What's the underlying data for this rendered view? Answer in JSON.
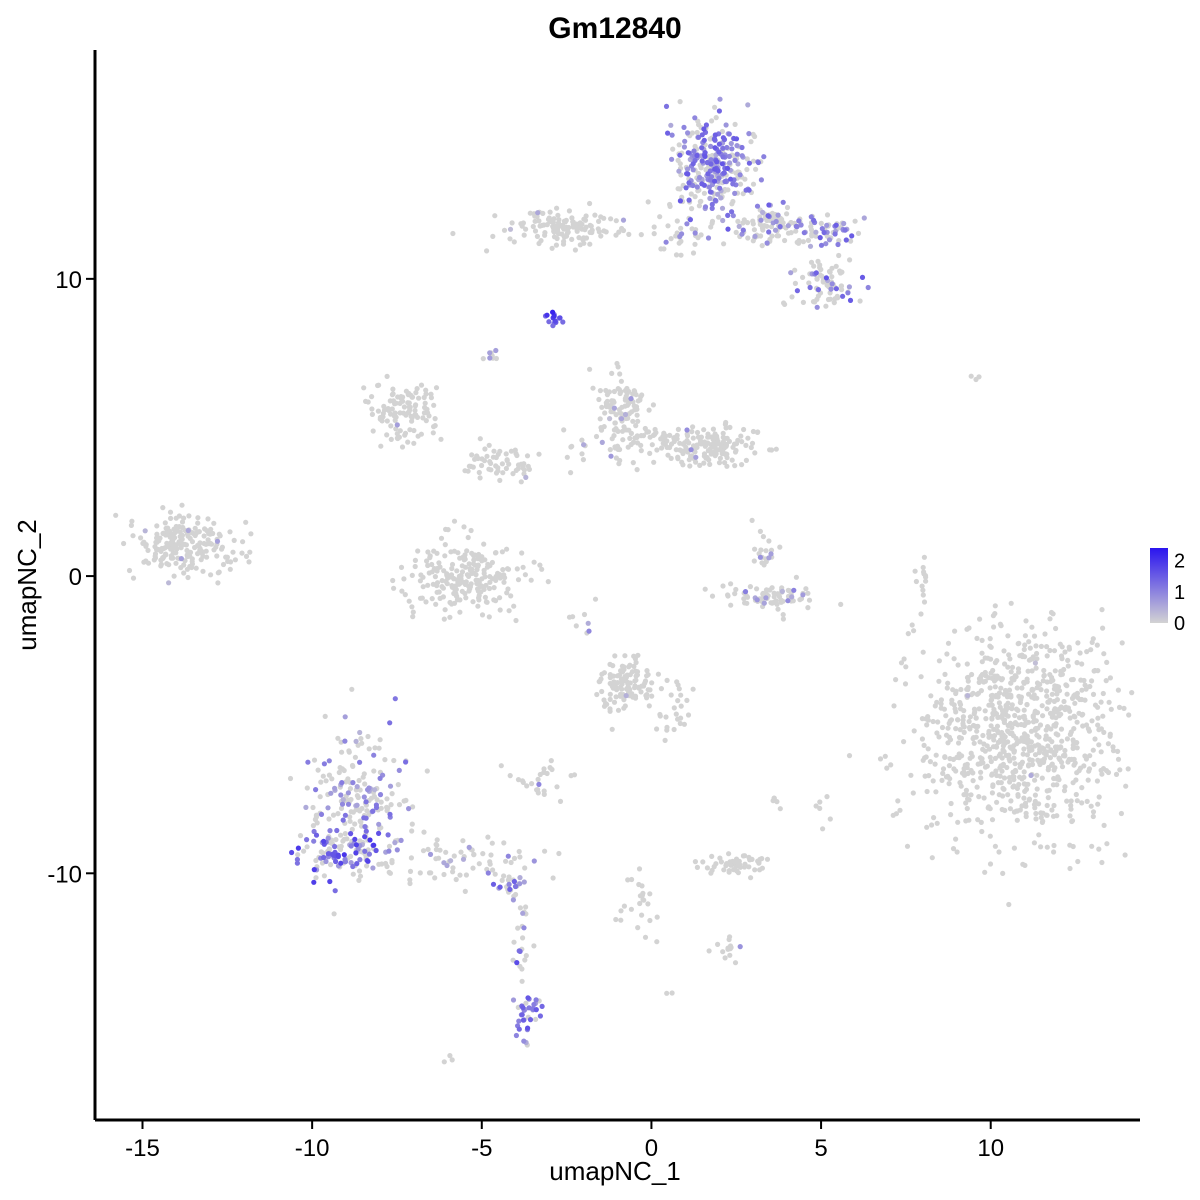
{
  "chart_data": {
    "type": "scatter",
    "title": "Gm12840",
    "xlabel": "umapNC_1",
    "ylabel": "umapNC_2",
    "xlim": [
      -16.4,
      14.4
    ],
    "ylim": [
      -18.3,
      17.7
    ],
    "x_ticks": [
      -15,
      -10,
      -5,
      0,
      5,
      10
    ],
    "y_ticks": [
      -10,
      0,
      10
    ],
    "colors": {
      "low": "#d3d3d3",
      "high": "#2a14ef"
    },
    "legend": {
      "position": "right",
      "labels": [
        2,
        1,
        0
      ],
      "max": 2.4
    },
    "clusters": [
      {
        "cx": 10.8,
        "cy": -5.3,
        "sx": 1.5,
        "sy": 1.8,
        "n": 900,
        "expr_frac": 0.004,
        "expr_max": 0.8
      },
      {
        "cx": 1.8,
        "cy": 13.8,
        "sx": 0.65,
        "sy": 0.9,
        "n": 320,
        "expr_frac": 0.55,
        "expr_max": 1.6
      },
      {
        "cx": 3.6,
        "cy": 11.8,
        "sx": 0.6,
        "sy": 0.35,
        "n": 90,
        "expr_frac": 0.3,
        "expr_max": 1.5
      },
      {
        "cx": 5.3,
        "cy": 11.6,
        "sx": 0.5,
        "sy": 0.25,
        "n": 50,
        "expr_frac": 0.4,
        "expr_max": 1.5
      },
      {
        "cx": 5.1,
        "cy": 9.8,
        "sx": 0.5,
        "sy": 0.45,
        "n": 80,
        "expr_frac": 0.3,
        "expr_max": 1.7
      },
      {
        "cx": -2.5,
        "cy": 11.7,
        "sx": 0.9,
        "sy": 0.3,
        "n": 130,
        "expr_frac": 0.02,
        "expr_max": 0.7
      },
      {
        "cx": 0.9,
        "cy": 11.4,
        "sx": 0.5,
        "sy": 0.3,
        "n": 30,
        "expr_frac": 0.15,
        "expr_max": 1.0
      },
      {
        "cx": -2.85,
        "cy": 8.7,
        "sx": 0.12,
        "sy": 0.12,
        "n": 14,
        "expr_frac": 1.0,
        "expr_max": 2.4
      },
      {
        "cx": -7.3,
        "cy": 5.5,
        "sx": 0.5,
        "sy": 0.5,
        "n": 110,
        "expr_frac": 0.02,
        "expr_max": 0.8
      },
      {
        "cx": -0.9,
        "cy": 5.7,
        "sx": 0.35,
        "sy": 0.5,
        "n": 100,
        "expr_frac": 0.04,
        "expr_max": 0.8
      },
      {
        "cx": 1.7,
        "cy": 4.3,
        "sx": 0.8,
        "sy": 0.35,
        "n": 140,
        "expr_frac": 0.04,
        "expr_max": 1.0
      },
      {
        "cx": -0.3,
        "cy": 4.5,
        "sx": 1.0,
        "sy": 0.4,
        "n": 70,
        "expr_frac": 0.04,
        "expr_max": 1.0
      },
      {
        "cx": -4.5,
        "cy": 3.8,
        "sx": 0.6,
        "sy": 0.3,
        "n": 60,
        "expr_frac": 0.02,
        "expr_max": 0.8
      },
      {
        "cx": -13.9,
        "cy": 1.1,
        "sx": 0.6,
        "sy": 0.5,
        "n": 180,
        "expr_frac": 0.02,
        "expr_max": 0.8
      },
      {
        "cx": -12.6,
        "cy": 0.9,
        "sx": 0.3,
        "sy": 0.5,
        "n": 30,
        "expr_frac": 0.03,
        "expr_max": 0.8
      },
      {
        "cx": -5.5,
        "cy": 0.0,
        "sx": 0.9,
        "sy": 0.6,
        "n": 220,
        "expr_frac": 0.01,
        "expr_max": 0.7
      },
      {
        "cx": 3.5,
        "cy": -0.7,
        "sx": 0.8,
        "sy": 0.25,
        "n": 80,
        "expr_frac": 0.12,
        "expr_max": 1.1
      },
      {
        "cx": 3.3,
        "cy": 0.8,
        "sx": 0.2,
        "sy": 0.4,
        "n": 20,
        "expr_frac": 0.1,
        "expr_max": 1.0
      },
      {
        "cx": -0.7,
        "cy": -3.7,
        "sx": 0.45,
        "sy": 0.5,
        "n": 110,
        "expr_frac": 0.03,
        "expr_max": 0.8
      },
      {
        "cx": 0.6,
        "cy": -4.3,
        "sx": 0.4,
        "sy": 0.6,
        "n": 30,
        "expr_frac": 0.05,
        "expr_max": 1.3
      },
      {
        "cx": -8.7,
        "cy": -7.6,
        "sx": 0.8,
        "sy": 1.1,
        "n": 200,
        "expr_frac": 0.35,
        "expr_max": 1.3
      },
      {
        "cx": -9.1,
        "cy": -9.3,
        "sx": 0.7,
        "sy": 0.4,
        "n": 110,
        "expr_frac": 0.6,
        "expr_max": 2.0
      },
      {
        "cx": -5.5,
        "cy": -9.6,
        "sx": 1.2,
        "sy": 0.4,
        "n": 70,
        "expr_frac": 0.15,
        "expr_max": 1.2
      },
      {
        "cx": -4.1,
        "cy": -10.4,
        "sx": 0.3,
        "sy": 0.25,
        "n": 25,
        "expr_frac": 0.5,
        "expr_max": 1.6
      },
      {
        "cx": -3.8,
        "cy": -12.3,
        "sx": 0.12,
        "sy": 0.8,
        "n": 22,
        "expr_frac": 0.4,
        "expr_max": 1.7
      },
      {
        "cx": -3.6,
        "cy": -14.7,
        "sx": 0.2,
        "sy": 0.5,
        "n": 36,
        "expr_frac": 0.8,
        "expr_max": 1.7
      },
      {
        "cx": 2.4,
        "cy": -9.7,
        "sx": 0.5,
        "sy": 0.18,
        "n": 55,
        "expr_frac": 0.0,
        "expr_max": 0.5
      },
      {
        "cx": -3.3,
        "cy": -6.9,
        "sx": 0.5,
        "sy": 0.25,
        "n": 25,
        "expr_frac": 0.05,
        "expr_max": 1.0
      },
      {
        "cx": -0.4,
        "cy": -11.0,
        "sx": 0.25,
        "sy": 0.6,
        "n": 24,
        "expr_frac": 0.0,
        "expr_max": 0.5
      },
      {
        "cx": 2.3,
        "cy": -12.6,
        "sx": 0.25,
        "sy": 0.2,
        "n": 14,
        "expr_frac": 0.1,
        "expr_max": 1.0
      },
      {
        "cx": 8.0,
        "cy": -0.2,
        "sx": 0.1,
        "sy": 0.6,
        "n": 14,
        "expr_frac": 0.0,
        "expr_max": 0.5
      },
      {
        "cx": -4.7,
        "cy": 7.4,
        "sx": 0.15,
        "sy": 0.15,
        "n": 8,
        "expr_frac": 0.3,
        "expr_max": 1.0
      },
      {
        "cx": 9.6,
        "cy": 6.7,
        "sx": 0.15,
        "sy": 0.05,
        "n": 3,
        "expr_frac": 0.0,
        "expr_max": 0.5
      },
      {
        "cx": -6.0,
        "cy": -16.2,
        "sx": 0.1,
        "sy": 0.05,
        "n": 3,
        "expr_frac": 0.0,
        "expr_max": 0.5
      },
      {
        "cx": 0.5,
        "cy": -14.0,
        "sx": 0.1,
        "sy": 0.05,
        "n": 2,
        "expr_frac": 0.0,
        "expr_max": 0.5
      },
      {
        "cx": 5.0,
        "cy": -7.7,
        "sx": 0.1,
        "sy": 0.3,
        "n": 6,
        "expr_frac": 0.0,
        "expr_max": 0.5
      },
      {
        "cx": 3.6,
        "cy": -7.6,
        "sx": 0.1,
        "sy": 0.2,
        "n": 5,
        "expr_frac": 0.0,
        "expr_max": 0.5
      },
      {
        "cx": -2.0,
        "cy": -1.3,
        "sx": 0.3,
        "sy": 0.3,
        "n": 8,
        "expr_frac": 0.2,
        "expr_max": 1.0
      }
    ]
  }
}
